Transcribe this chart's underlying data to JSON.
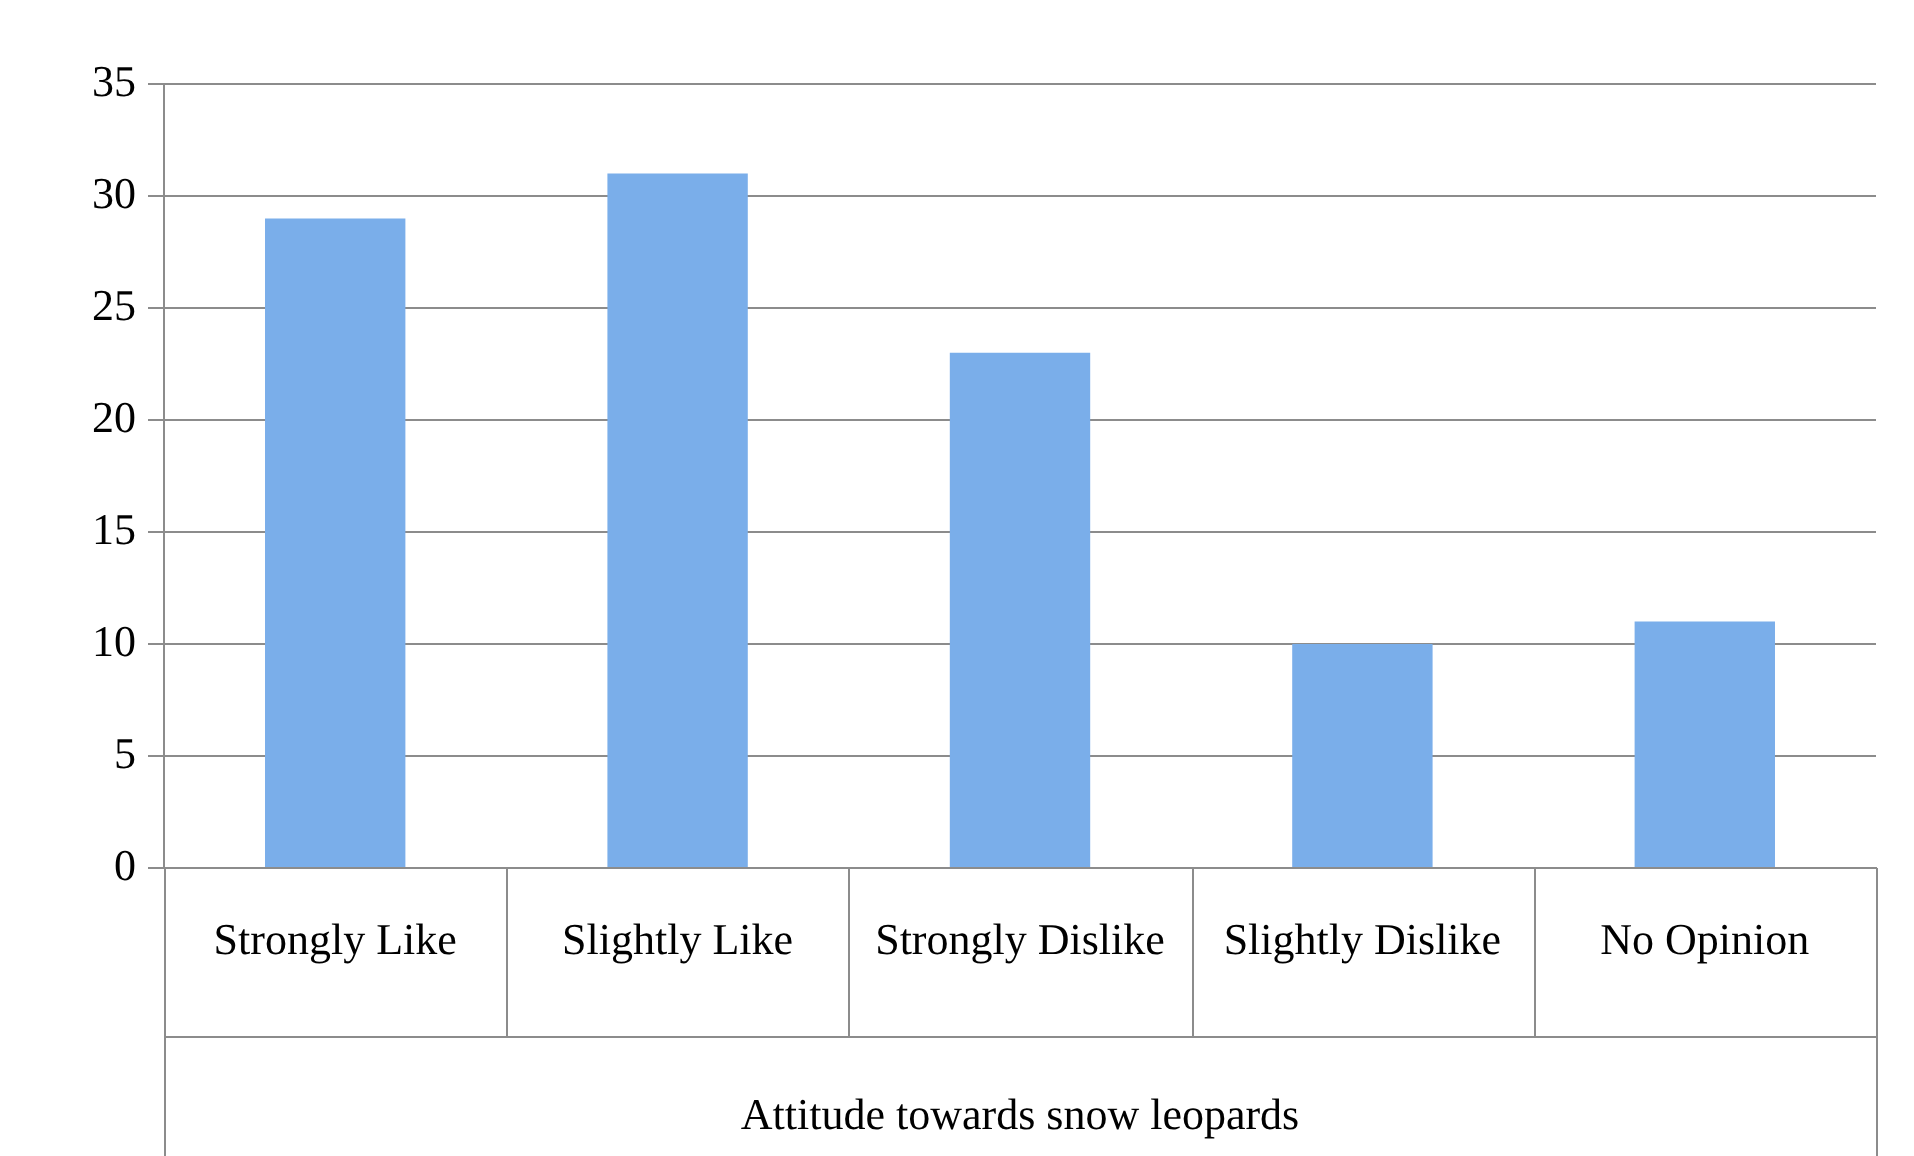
{
  "chart_data": {
    "type": "bar",
    "xlabel": "Attitude towards snow leopards",
    "categories": [
      "Strongly Like",
      "Slightly Like",
      "Strongly Dislike",
      "Slightly Dislike",
      "No Opinion"
    ],
    "values": [
      29,
      31,
      23,
      10,
      11
    ],
    "color": "#7aaeea",
    "ylim": [
      0,
      35
    ],
    "yticks": [
      0,
      5,
      10,
      15,
      20,
      25,
      30,
      35
    ],
    "grid": "y",
    "legend": false
  }
}
